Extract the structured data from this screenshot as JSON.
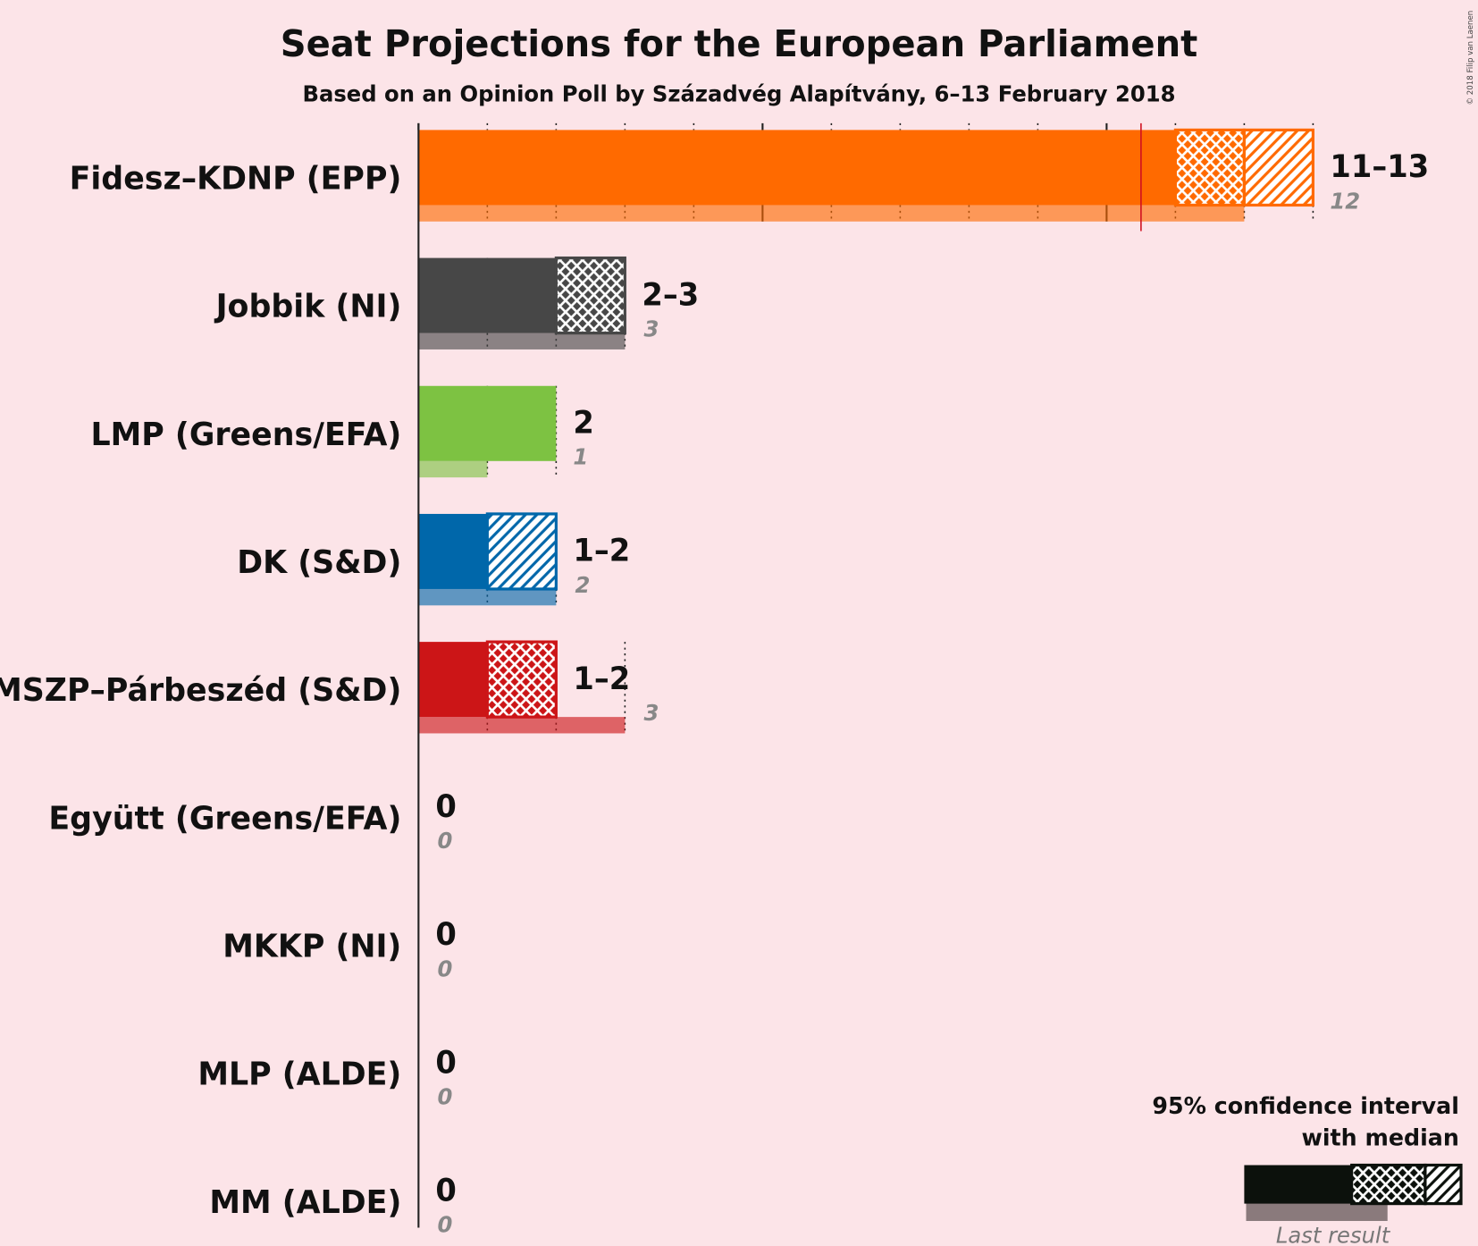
{
  "chart_data": {
    "type": "seat-projection",
    "title": "Seat Projections for the European Parliament",
    "subtitle": "Based on an Opinion Poll by Századvég Alapítvány, 6–13 February 2018",
    "copyright": "© 2018 Filip van Laenen",
    "xlim": [
      0,
      13
    ],
    "xticks": [
      0,
      1,
      2,
      3,
      4,
      5,
      6,
      7,
      8,
      9,
      10,
      11,
      12,
      13
    ],
    "majority_line": 10.5,
    "categories": [
      "Fidesz–KDNP (EPP)",
      "Jobbik (NI)",
      "LMP (Greens/EFA)",
      "DK (S&D)",
      "MSZP–Párbeszéd (S&D)",
      "Együtt (Greens/EFA)",
      "MKKP (NI)",
      "MLP (ALDE)",
      "MM (ALDE)"
    ],
    "colors": [
      "#ff6a00",
      "#474747",
      "#7dc242",
      "#0067aa",
      "#cc1517",
      "#888888",
      "#888888",
      "#888888",
      "#888888"
    ],
    "low": [
      11,
      2,
      2,
      1,
      1,
      0,
      0,
      0,
      0
    ],
    "median": [
      12,
      3,
      2,
      1,
      2,
      0,
      0,
      0,
      0
    ],
    "high": [
      13,
      3,
      2,
      2,
      2,
      0,
      0,
      0,
      0
    ],
    "range_labels": [
      "11–13",
      "2–3",
      "2",
      "1–2",
      "1–2",
      "0",
      "0",
      "0",
      "0"
    ],
    "last_result": [
      12,
      3,
      1,
      2,
      3,
      0,
      0,
      0,
      0
    ],
    "legend": {
      "title_line1": "95% confidence interval",
      "title_line2": "with median",
      "last_result": "Last result"
    }
  }
}
